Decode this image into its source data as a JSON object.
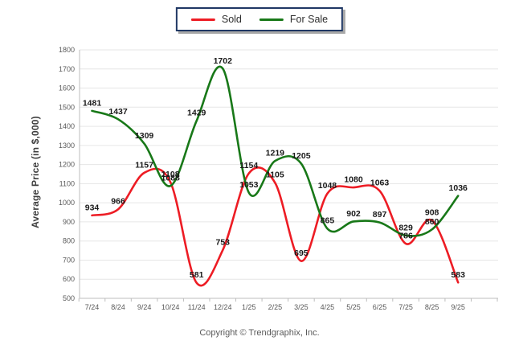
{
  "legend": {
    "sold_label": "Sold",
    "for_sale_label": "For Sale"
  },
  "y_axis_title": "Average Price (in $,000)",
  "footer": {
    "copyright": "Copyright © Trendgraphix, Inc."
  },
  "chart_data": {
    "type": "line",
    "title": "",
    "xlabel": "",
    "ylabel": "Average Price (in $,000)",
    "categories": [
      "7/24",
      "8/24",
      "9/24",
      "10/24",
      "11/24",
      "12/24",
      "1/25",
      "2/25",
      "3/25",
      "4/25",
      "5/25",
      "6/25",
      "7/25",
      "8/25",
      "9/25"
    ],
    "series": [
      {
        "name": "Sold",
        "color": "#ED1C24",
        "values": [
          934,
          966,
          1157,
          1108,
          581,
          753,
          1154,
          1105,
          695,
          1048,
          1080,
          1063,
          786,
          908,
          583
        ]
      },
      {
        "name": "For Sale",
        "color": "#187818",
        "values": [
          1481,
          1437,
          1309,
          1088,
          1429,
          1702,
          1053,
          1219,
          1205,
          865,
          902,
          897,
          829,
          860,
          1036
        ]
      }
    ],
    "ylim": [
      500,
      1800
    ],
    "ytick_step": 100,
    "grid": true,
    "curve": "smooth",
    "legend_position": "top-center",
    "colors": {
      "gridline": "#e6e6e6",
      "axis": "#bdbdbd",
      "tick_text": "#595959",
      "data_label": "#1a1a1a",
      "legend_border": "#203864"
    }
  }
}
